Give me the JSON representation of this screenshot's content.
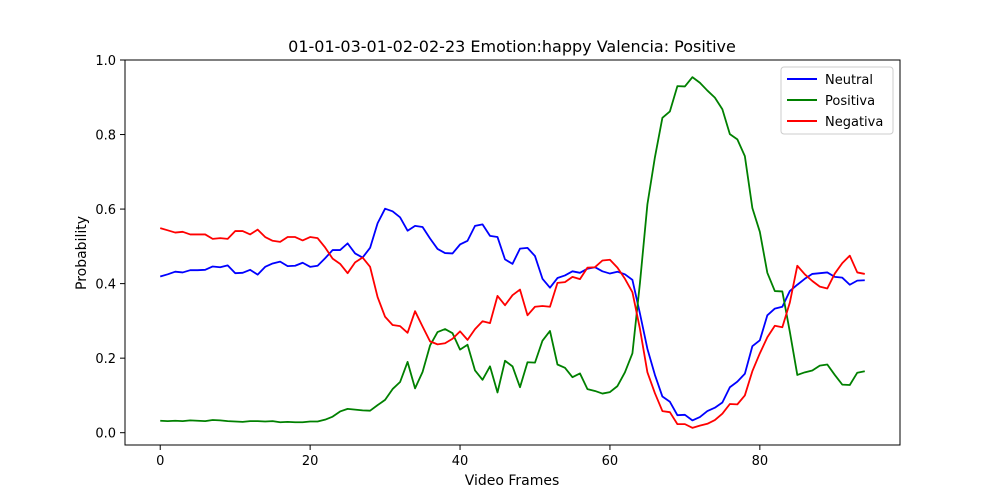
{
  "chart_data": {
    "type": "line",
    "title": "01-01-03-01-02-02-23 Emotion:happy Valencia: Positive",
    "xlabel": "Video Frames",
    "ylabel": "Probability",
    "xlim": [
      -4.7,
      98.7
    ],
    "ylim": [
      -0.033,
      1.0
    ],
    "xticks": [
      0,
      20,
      40,
      60,
      80
    ],
    "yticks": [
      0.0,
      0.2,
      0.4,
      0.6,
      0.8,
      1.0
    ],
    "xtick_labels": [
      "0",
      "20",
      "40",
      "60",
      "80"
    ],
    "ytick_labels": [
      "0.0",
      "0.2",
      "0.4",
      "0.6",
      "0.8",
      "1.0"
    ],
    "grid": false,
    "legend_position": "top-right",
    "series": [
      {
        "name": "Neutral",
        "color": "#0000ff",
        "values": [
          0.419,
          0.425,
          0.432,
          0.43,
          0.436,
          0.436,
          0.437,
          0.446,
          0.444,
          0.449,
          0.428,
          0.429,
          0.437,
          0.424,
          0.445,
          0.454,
          0.459,
          0.447,
          0.448,
          0.456,
          0.445,
          0.448,
          0.468,
          0.49,
          0.49,
          0.508,
          0.481,
          0.47,
          0.496,
          0.562,
          0.601,
          0.594,
          0.578,
          0.542,
          0.555,
          0.552,
          0.521,
          0.493,
          0.482,
          0.481,
          0.505,
          0.515,
          0.555,
          0.559,
          0.528,
          0.525,
          0.465,
          0.453,
          0.494,
          0.496,
          0.474,
          0.413,
          0.389,
          0.415,
          0.422,
          0.433,
          0.429,
          0.44,
          0.444,
          0.433,
          0.427,
          0.432,
          0.425,
          0.41,
          0.32,
          0.225,
          0.155,
          0.097,
          0.083,
          0.047,
          0.048,
          0.033,
          0.042,
          0.058,
          0.067,
          0.081,
          0.122,
          0.137,
          0.158,
          0.232,
          0.248,
          0.315,
          0.333,
          0.338,
          0.38,
          0.397,
          0.413,
          0.426,
          0.428,
          0.43,
          0.418,
          0.416,
          0.397,
          0.408,
          0.409
        ]
      },
      {
        "name": "Positiva",
        "color": "#008000",
        "values": [
          0.032,
          0.031,
          0.032,
          0.031,
          0.033,
          0.032,
          0.031,
          0.034,
          0.033,
          0.031,
          0.03,
          0.029,
          0.031,
          0.031,
          0.03,
          0.031,
          0.028,
          0.029,
          0.028,
          0.028,
          0.03,
          0.03,
          0.035,
          0.043,
          0.057,
          0.064,
          0.062,
          0.06,
          0.059,
          0.074,
          0.088,
          0.117,
          0.136,
          0.19,
          0.119,
          0.163,
          0.234,
          0.27,
          0.278,
          0.267,
          0.223,
          0.236,
          0.167,
          0.142,
          0.178,
          0.108,
          0.193,
          0.178,
          0.122,
          0.189,
          0.188,
          0.247,
          0.273,
          0.183,
          0.174,
          0.149,
          0.159,
          0.117,
          0.112,
          0.105,
          0.109,
          0.125,
          0.162,
          0.213,
          0.401,
          0.613,
          0.739,
          0.845,
          0.862,
          0.93,
          0.929,
          0.954,
          0.939,
          0.918,
          0.899,
          0.868,
          0.801,
          0.787,
          0.742,
          0.603,
          0.539,
          0.429,
          0.38,
          0.379,
          0.271,
          0.155,
          0.162,
          0.167,
          0.18,
          0.183,
          0.155,
          0.129,
          0.128,
          0.161,
          0.165
        ]
      },
      {
        "name": "Negativa",
        "color": "#ff0000",
        "values": [
          0.549,
          0.543,
          0.537,
          0.539,
          0.532,
          0.532,
          0.532,
          0.52,
          0.522,
          0.52,
          0.541,
          0.541,
          0.532,
          0.545,
          0.525,
          0.515,
          0.512,
          0.525,
          0.525,
          0.516,
          0.525,
          0.522,
          0.497,
          0.467,
          0.453,
          0.428,
          0.457,
          0.47,
          0.445,
          0.364,
          0.311,
          0.289,
          0.286,
          0.268,
          0.326,
          0.285,
          0.245,
          0.237,
          0.24,
          0.252,
          0.272,
          0.249,
          0.278,
          0.299,
          0.294,
          0.367,
          0.342,
          0.369,
          0.384,
          0.315,
          0.338,
          0.34,
          0.338,
          0.402,
          0.404,
          0.418,
          0.412,
          0.443,
          0.444,
          0.462,
          0.464,
          0.443,
          0.413,
          0.377,
          0.279,
          0.162,
          0.106,
          0.058,
          0.055,
          0.023,
          0.023,
          0.013,
          0.019,
          0.024,
          0.034,
          0.051,
          0.077,
          0.076,
          0.1,
          0.165,
          0.213,
          0.256,
          0.287,
          0.283,
          0.349,
          0.448,
          0.425,
          0.407,
          0.392,
          0.387,
          0.427,
          0.455,
          0.475,
          0.43,
          0.426
        ]
      }
    ]
  }
}
